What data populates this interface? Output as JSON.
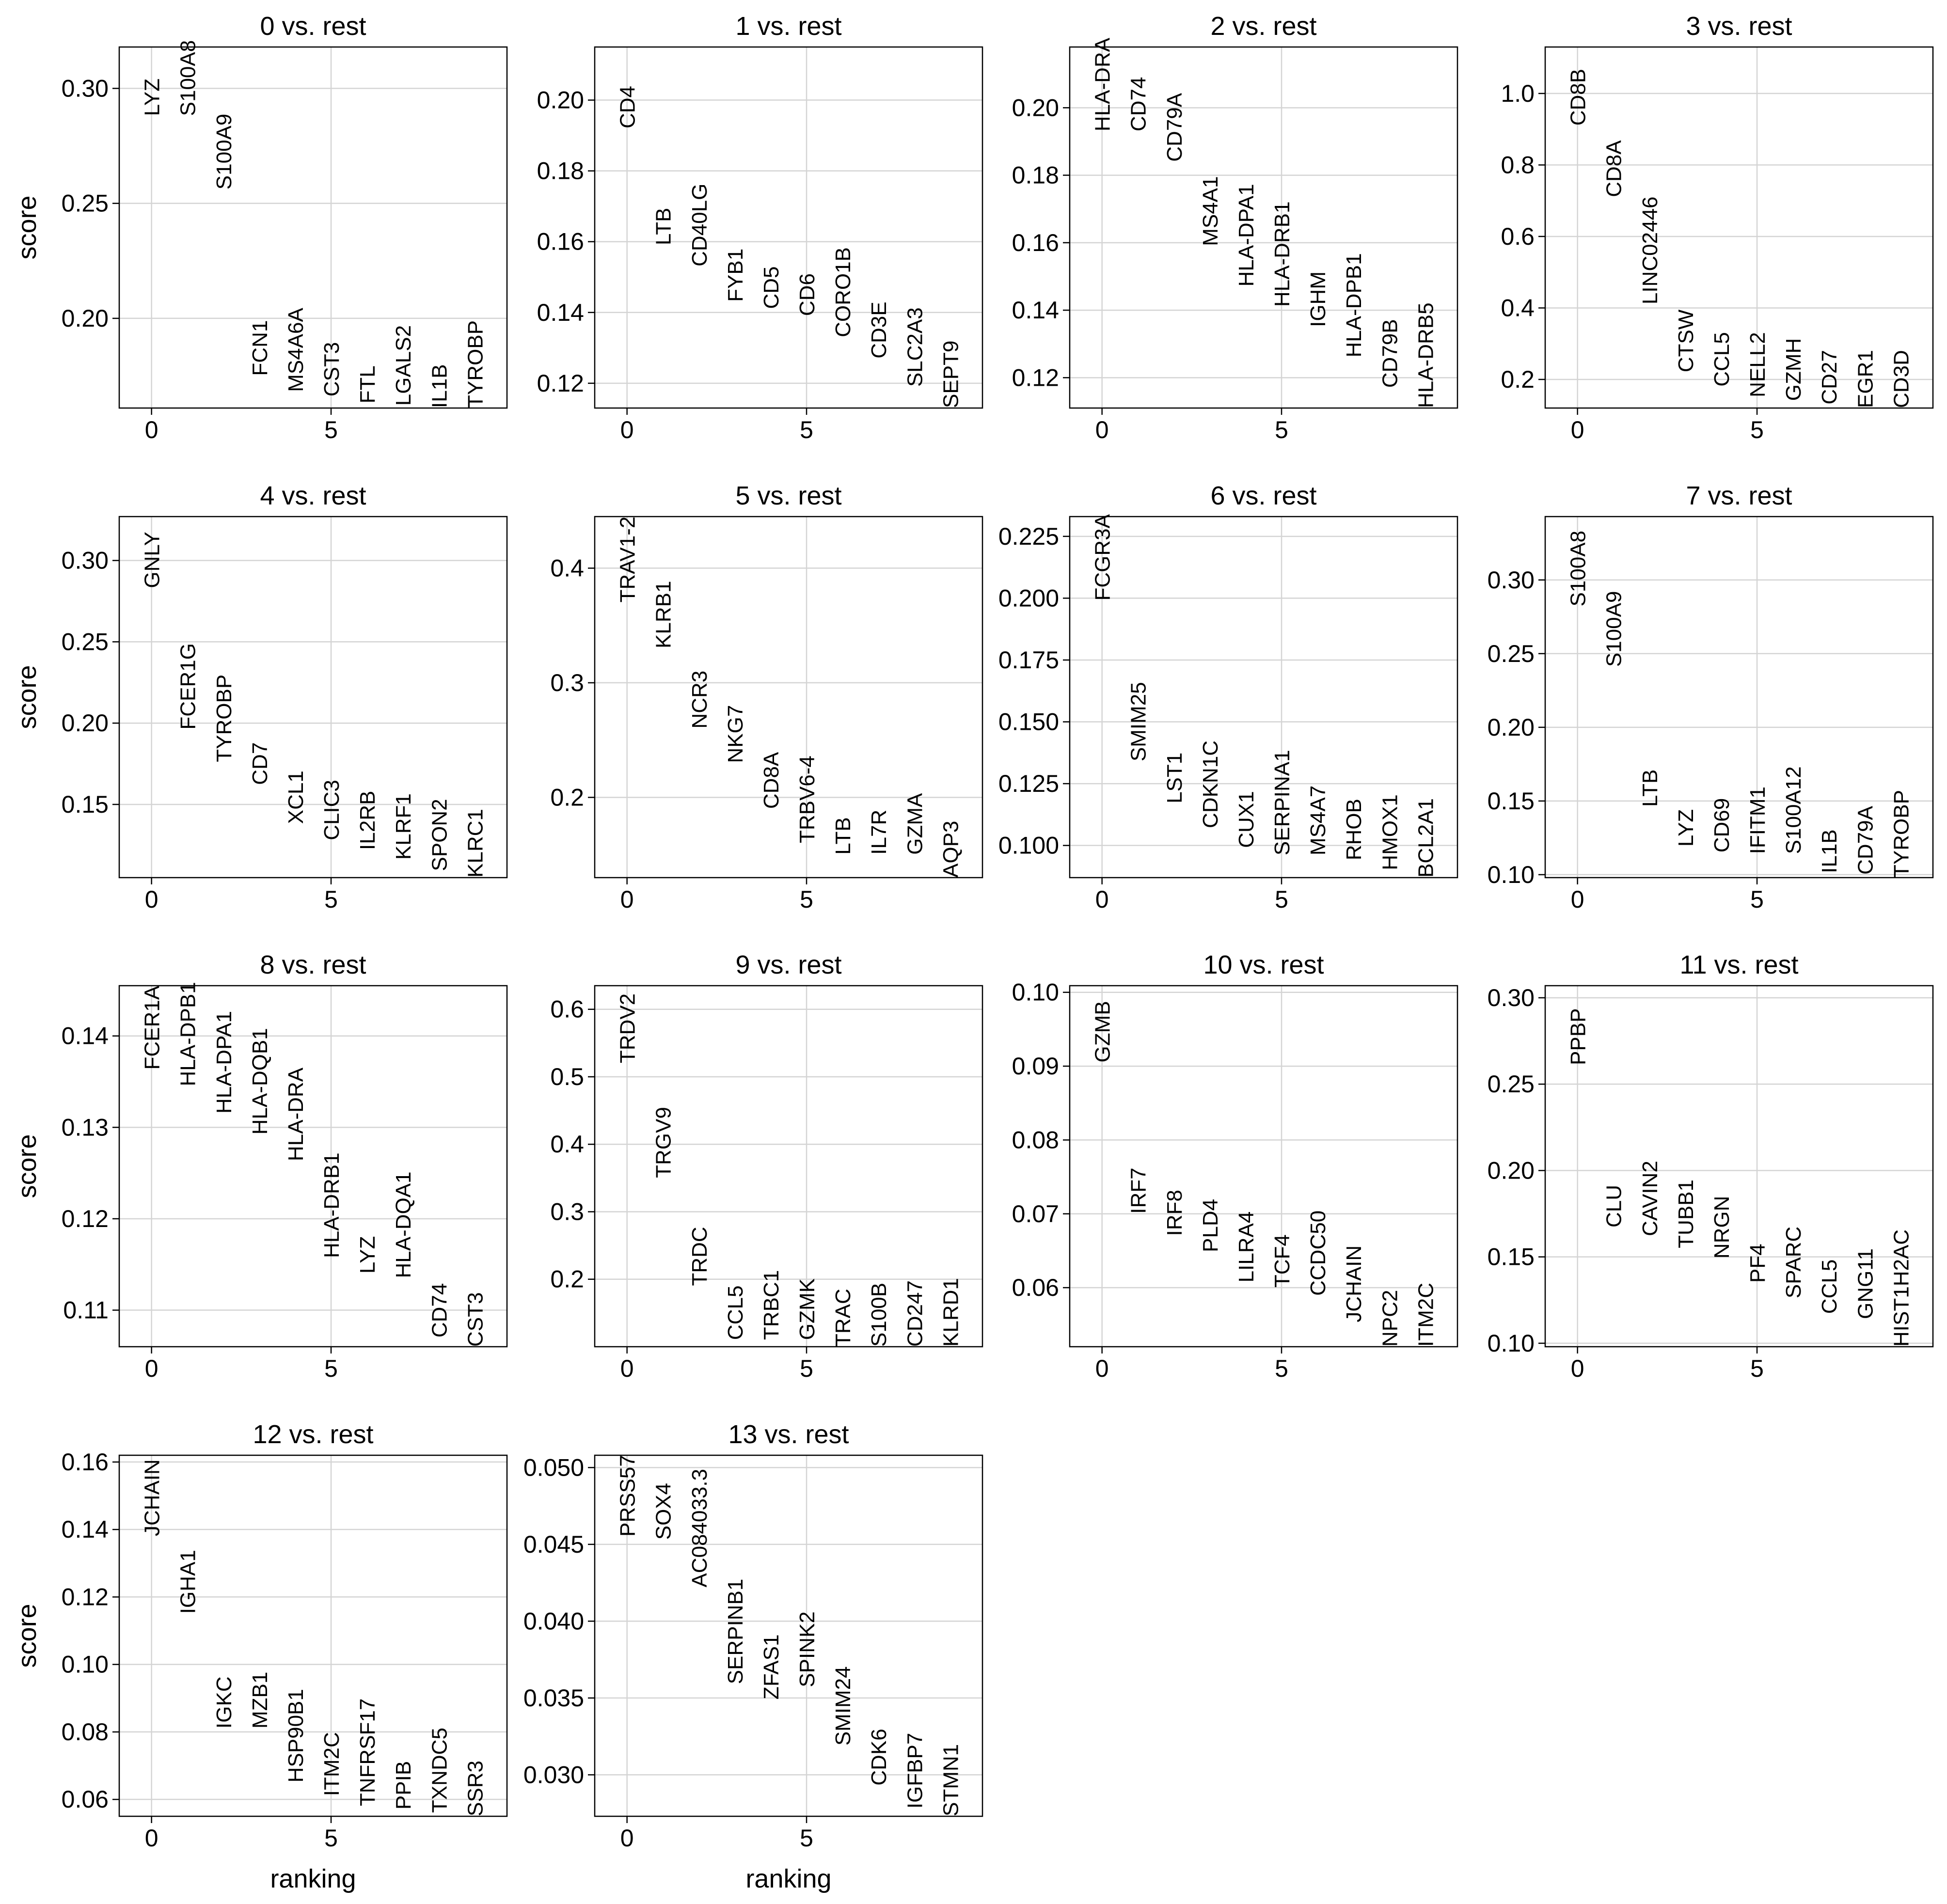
{
  "figure": {
    "xlabel": "ranking",
    "ylabel": "score"
  },
  "chart_data": [
    {
      "type": "scatter",
      "title": "0 vs. rest",
      "xlabel": "",
      "ylabel": "score",
      "xlim": [
        -0.9,
        9.9
      ],
      "ylim": [
        0.161,
        0.318
      ],
      "xticks": [
        0,
        5
      ],
      "yticks": [
        0.2,
        0.25,
        0.3
      ],
      "grid": true,
      "genes": [
        "LYZ",
        "S100A8",
        "S100A9",
        "FCN1",
        "MS4A6A",
        "CST3",
        "FTL",
        "LGALS2",
        "IL1B",
        "TYROBP"
      ],
      "scores": [
        0.288,
        0.288,
        0.256,
        0.175,
        0.168,
        0.166,
        0.163,
        0.162,
        0.161,
        0.161
      ]
    },
    {
      "type": "scatter",
      "title": "1 vs. rest",
      "xlabel": "",
      "ylabel": "",
      "xlim": [
        -0.9,
        9.9
      ],
      "ylim": [
        0.113,
        0.215
      ],
      "xticks": [
        0,
        5
      ],
      "yticks": [
        0.12,
        0.14,
        0.16,
        0.18,
        0.2
      ],
      "grid": true,
      "genes": [
        "CD4",
        "LTB",
        "CD40LG",
        "FYB1",
        "CD5",
        "CD6",
        "CORO1B",
        "CD3E",
        "SLC2A3",
        "SEPT9"
      ],
      "scores": [
        0.192,
        0.159,
        0.153,
        0.143,
        0.141,
        0.139,
        0.133,
        0.127,
        0.119,
        0.113
      ]
    },
    {
      "type": "scatter",
      "title": "2 vs. rest",
      "xlabel": "",
      "ylabel": "",
      "xlim": [
        -0.9,
        9.9
      ],
      "ylim": [
        0.111,
        0.218
      ],
      "xticks": [
        0,
        5
      ],
      "yticks": [
        0.12,
        0.14,
        0.16,
        0.18,
        0.2
      ],
      "grid": true,
      "genes": [
        "HLA-DRA",
        "CD74",
        "CD79A",
        "MS4A1",
        "HLA-DPA1",
        "HLA-DRB1",
        "IGHM",
        "HLA-DPB1",
        "CD79B",
        "HLA-DRB5"
      ],
      "scores": [
        0.193,
        0.193,
        0.184,
        0.159,
        0.147,
        0.141,
        0.135,
        0.126,
        0.117,
        0.111
      ]
    },
    {
      "type": "scatter",
      "title": "3 vs. rest",
      "xlabel": "",
      "ylabel": "",
      "xlim": [
        -0.9,
        9.9
      ],
      "ylim": [
        0.12,
        1.13
      ],
      "xticks": [
        0,
        5
      ],
      "yticks": [
        0.2,
        0.4,
        0.6,
        0.8,
        1.0
      ],
      "grid": true,
      "genes": [
        "CD8B",
        "CD8A",
        "LINC02446",
        "CTSW",
        "CCL5",
        "NELL2",
        "GZMH",
        "CD27",
        "EGR1",
        "CD3D"
      ],
      "scores": [
        0.91,
        0.71,
        0.41,
        0.22,
        0.18,
        0.15,
        0.14,
        0.13,
        0.12,
        0.12
      ]
    },
    {
      "type": "scatter",
      "title": "4 vs. rest",
      "xlabel": "",
      "ylabel": "score",
      "xlim": [
        -0.9,
        9.9
      ],
      "ylim": [
        0.105,
        0.327
      ],
      "xticks": [
        0,
        5
      ],
      "yticks": [
        0.15,
        0.2,
        0.25,
        0.3
      ],
      "grid": true,
      "genes": [
        "GNLY",
        "FCER1G",
        "TYROBP",
        "CD7",
        "XCL1",
        "CLIC3",
        "IL2RB",
        "KLRF1",
        "SPON2",
        "KLRC1"
      ],
      "scores": [
        0.283,
        0.196,
        0.176,
        0.162,
        0.138,
        0.128,
        0.122,
        0.116,
        0.109,
        0.105
      ]
    },
    {
      "type": "scatter",
      "title": "5 vs. rest",
      "xlabel": "",
      "ylabel": "",
      "xlim": [
        -0.9,
        9.9
      ],
      "ylim": [
        0.13,
        0.445
      ],
      "xticks": [
        0,
        5
      ],
      "yticks": [
        0.2,
        0.3,
        0.4
      ],
      "grid": true,
      "genes": [
        "TRAV1-2",
        "KLRB1",
        "NCR3",
        "NKG7",
        "CD8A",
        "TRBV6-4",
        "LTB",
        "IL7R",
        "GZMA",
        "AQP3"
      ],
      "scores": [
        0.37,
        0.33,
        0.26,
        0.23,
        0.19,
        0.16,
        0.15,
        0.15,
        0.15,
        0.13
      ]
    },
    {
      "type": "scatter",
      "title": "6 vs. rest",
      "xlabel": "",
      "ylabel": "",
      "xlim": [
        -0.9,
        9.9
      ],
      "ylim": [
        0.087,
        0.233
      ],
      "xticks": [
        0,
        5
      ],
      "yticks": [
        0.1,
        0.125,
        0.15,
        0.175,
        0.2,
        0.225
      ],
      "grid": true,
      "genes": [
        "FCGR3A",
        "SMIM25",
        "LST1",
        "CDKN1C",
        "CUX1",
        "SERPINA1",
        "MS4A7",
        "RHOB",
        "HMOX1",
        "BCL2A1"
      ],
      "scores": [
        0.199,
        0.134,
        0.117,
        0.107,
        0.099,
        0.096,
        0.096,
        0.094,
        0.09,
        0.087
      ]
    },
    {
      "type": "scatter",
      "title": "7 vs. rest",
      "xlabel": "",
      "ylabel": "",
      "xlim": [
        -0.9,
        9.9
      ],
      "ylim": [
        0.098,
        0.343
      ],
      "xticks": [
        0,
        5
      ],
      "yticks": [
        0.1,
        0.15,
        0.2,
        0.25,
        0.3
      ],
      "grid": true,
      "genes": [
        "S100A8",
        "S100A9",
        "LTB",
        "LYZ",
        "CD69",
        "IFITM1",
        "S100A12",
        "IL1B",
        "CD79A",
        "TYROBP"
      ],
      "scores": [
        0.282,
        0.241,
        0.146,
        0.119,
        0.115,
        0.114,
        0.114,
        0.101,
        0.1,
        0.098
      ]
    },
    {
      "type": "scatter",
      "title": "8 vs. rest",
      "xlabel": "",
      "ylabel": "score",
      "xlim": [
        -0.9,
        9.9
      ],
      "ylim": [
        0.106,
        0.1455
      ],
      "xticks": [
        0,
        5
      ],
      "yticks": [
        0.11,
        0.12,
        0.13,
        0.14
      ],
      "grid": true,
      "genes": [
        "FCER1A",
        "HLA-DPB1",
        "HLA-DPA1",
        "HLA-DQB1",
        "HLA-DRA",
        "HLA-DRB1",
        "LYZ",
        "HLA-DQA1",
        "CD74",
        "CST3"
      ],
      "scores": [
        0.1363,
        0.1345,
        0.1315,
        0.1292,
        0.1263,
        0.1157,
        0.114,
        0.1135,
        0.107,
        0.106
      ]
    },
    {
      "type": "scatter",
      "title": "9 vs. rest",
      "xlabel": "",
      "ylabel": "",
      "xlim": [
        -0.9,
        9.9
      ],
      "ylim": [
        0.1,
        0.635
      ],
      "xticks": [
        0,
        5
      ],
      "yticks": [
        0.2,
        0.3,
        0.4,
        0.5,
        0.6
      ],
      "grid": true,
      "genes": [
        "TRDV2",
        "TRGV9",
        "TRDC",
        "CCL5",
        "TRBC1",
        "GZMK",
        "TRAC",
        "S100B",
        "CD247",
        "KLRD1"
      ],
      "scores": [
        0.52,
        0.35,
        0.19,
        0.11,
        0.11,
        0.11,
        0.1,
        0.1,
        0.1,
        0.1
      ]
    },
    {
      "type": "scatter",
      "title": "10 vs. rest",
      "xlabel": "",
      "ylabel": "",
      "xlim": [
        -0.9,
        9.9
      ],
      "ylim": [
        0.052,
        0.1009
      ],
      "xticks": [
        0,
        5
      ],
      "yticks": [
        0.06,
        0.07,
        0.08,
        0.09,
        0.1
      ],
      "grid": true,
      "genes": [
        "GZMB",
        "IRF7",
        "IRF8",
        "PLD4",
        "LILRA4",
        "TCF4",
        "CCDC50",
        "JCHAIN",
        "NPC2",
        "ITM2C"
      ],
      "scores": [
        0.0905,
        0.07,
        0.067,
        0.0648,
        0.0607,
        0.06,
        0.0589,
        0.0553,
        0.052,
        0.052
      ]
    },
    {
      "type": "scatter",
      "title": "11 vs. rest",
      "xlabel": "",
      "ylabel": "",
      "xlim": [
        -0.9,
        9.9
      ],
      "ylim": [
        0.098,
        0.307
      ],
      "xticks": [
        0,
        5
      ],
      "yticks": [
        0.1,
        0.15,
        0.2,
        0.25,
        0.3
      ],
      "grid": true,
      "genes": [
        "PPBP",
        "CLU",
        "CAVIN2",
        "TUBB1",
        "NRGN",
        "PF4",
        "SPARC",
        "CCL5",
        "GNG11",
        "HIST1H2AC"
      ],
      "scores": [
        0.261,
        0.167,
        0.162,
        0.155,
        0.149,
        0.135,
        0.126,
        0.117,
        0.114,
        0.098
      ]
    },
    {
      "type": "scatter",
      "title": "12 vs. rest",
      "xlabel": "ranking",
      "ylabel": "score",
      "xlim": [
        -0.9,
        9.9
      ],
      "ylim": [
        0.055,
        0.162
      ],
      "xticks": [
        0,
        5
      ],
      "yticks": [
        0.06,
        0.08,
        0.1,
        0.12,
        0.14,
        0.16
      ],
      "grid": true,
      "genes": [
        "JCHAIN",
        "IGHA1",
        "IGKC",
        "MZB1",
        "HSP90B1",
        "ITM2C",
        "TNFRSF17",
        "PPIB",
        "TXNDC5",
        "SSR3"
      ],
      "scores": [
        0.138,
        0.115,
        0.081,
        0.081,
        0.065,
        0.061,
        0.058,
        0.057,
        0.056,
        0.055
      ]
    },
    {
      "type": "scatter",
      "title": "13 vs. rest",
      "xlabel": "ranking",
      "ylabel": "",
      "xlim": [
        -0.9,
        9.9
      ],
      "ylim": [
        0.0273,
        0.0508
      ],
      "xticks": [
        0,
        5
      ],
      "yticks": [
        0.03,
        0.035,
        0.04,
        0.045,
        0.05
      ],
      "grid": true,
      "genes": [
        "PRSS57",
        "SOX4",
        "AC084033.3",
        "SERPINB1",
        "ZFAS1",
        "SPINK2",
        "SMIM24",
        "CDK6",
        "IGFBP7",
        "STMN1"
      ],
      "scores": [
        0.0455,
        0.0453,
        0.0422,
        0.0359,
        0.0349,
        0.0357,
        0.0319,
        0.0293,
        0.0278,
        0.0273
      ]
    }
  ]
}
